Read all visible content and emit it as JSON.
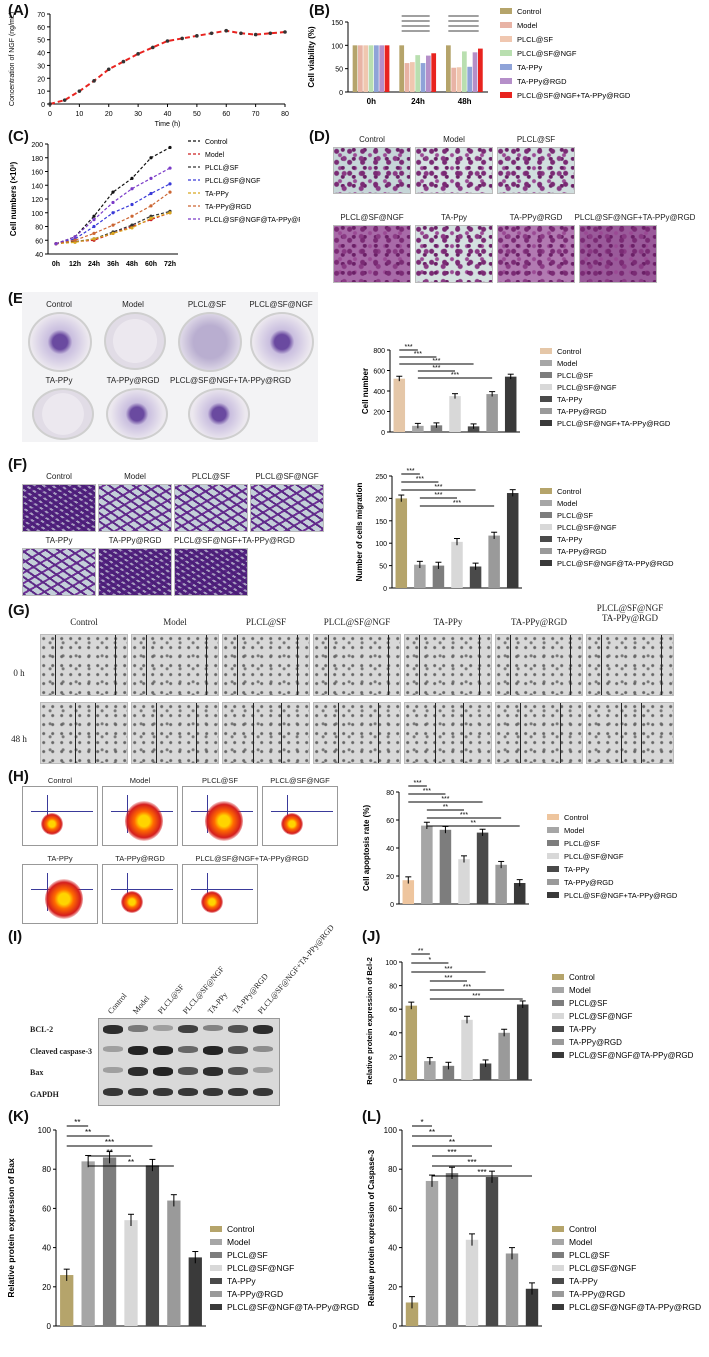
{
  "labels": {
    "A": "(A)",
    "B": "(B)",
    "C": "(C)",
    "D": "(D)",
    "E": "(E)",
    "F": "(F)",
    "G": "(G)",
    "H": "(H)",
    "I": "(I)",
    "J": "(J)",
    "K": "(K)",
    "L": "(L)"
  },
  "groups7_sf": [
    "Control",
    "Model",
    "PLCL@SF",
    "PLCL@SF@NGF",
    "TA-PPy",
    "TA-PPy@RGD",
    "PLCL@SF@NGF+TA-PPy@RGD"
  ],
  "groups7_at": [
    "Control",
    "Model",
    "PLCL@SF",
    "PLCL@SF@NGF",
    "TA-PPy",
    "TA-PPy@RGD",
    "PLCL@SF@NGF@TA-PPy@RGD"
  ],
  "photos": {
    "D": [
      "Control",
      "Model",
      "PLCL@SF",
      "PLCL@SF@NGF",
      "TA-Ppy",
      "TA-PPy@RGD",
      "PLCL@SF@NGF+TA-PPy@RGD"
    ],
    "E": [
      "Control",
      "Model",
      "PLCL@SF",
      "PLCL@SF@NGF",
      "TA-PPy",
      "TA-PPy@RGD",
      "PLCL@SF@NGF+TA-PPy@RGD"
    ],
    "F": [
      "Control",
      "Model",
      "PLCL@SF",
      "PLCL@SF@NGF",
      "TA-PPy",
      "TA-PPy@RGD",
      "PLCL@SF@NGF+TA-PPy@RGD"
    ],
    "G": [
      "Control",
      "Model",
      "PLCL@SF",
      "PLCL@SF@NGF",
      "TA-PPy",
      "TA-PPy@RGD",
      "PLCL@SF@NGF\nTA-PPy@RGD"
    ],
    "G_rows": [
      "0 h",
      "48 h"
    ],
    "H": [
      "Control",
      "Model",
      "PLCL@SF",
      "PLCL@SF@NGF",
      "TA-PPy",
      "TA-PPy@RGD",
      "PLCL@SF@NGF+TA-PPy@RGD"
    ]
  },
  "blot": {
    "lanes": [
      "Control",
      "Model",
      "PLCL@SF",
      "PLCL@SF@NGF",
      "TA-PPy",
      "TA-PPy@RGD",
      "PLCL@SF@NGF+TA-PPy@RGD"
    ],
    "rows": [
      "BCL-2",
      "Cleaved caspase-3",
      "Bax",
      "GAPDH"
    ]
  },
  "colors": {
    "control": "#b5a46b",
    "model": "#a6a6a6",
    "plcl_sf": "#7d7d7d",
    "plcl_sf_ngf": "#d8d8d8",
    "tappy": "#4a4a4a",
    "tappy_rgd": "#9a9a9a",
    "combo": "#3a3a3a",
    "E_control": "#e5c7a8",
    "H_control": "#eec59e",
    "B_colors": [
      "#b5a46b",
      "#e8b3a5",
      "#f0c7b0",
      "#b9dfb0",
      "#8fa3d8",
      "#b58fc9",
      "#e8231f"
    ],
    "C_colors": [
      "#111111",
      "#cc2222",
      "#333333",
      "#3a3ad8",
      "#d8a820",
      "#cc6633",
      "#7a3ac8"
    ]
  },
  "chart_data": [
    {
      "id": "A",
      "type": "line",
      "xlabel": "Time (h)",
      "ylabel": "Concentration of NGF (ng/mL)",
      "x": [
        0,
        5,
        10,
        15,
        20,
        25,
        30,
        35,
        40,
        45,
        50,
        55,
        60,
        65,
        70,
        75,
        80
      ],
      "values": [
        0,
        3,
        10,
        18,
        27,
        33,
        39,
        44,
        49,
        51,
        53,
        55,
        57,
        55,
        54,
        55,
        56
      ],
      "xlim": [
        0,
        80
      ],
      "ylim": [
        0,
        70
      ],
      "xticks": [
        0,
        10,
        20,
        30,
        40,
        50,
        60,
        70,
        80
      ],
      "yticks": [
        0,
        10,
        20,
        30,
        40,
        50,
        60,
        70
      ]
    },
    {
      "id": "B",
      "type": "bar",
      "ylabel": "Cell viability (%)",
      "categories": [
        "0h",
        "24h",
        "48h"
      ],
      "ylim": [
        0,
        150
      ],
      "yticks": [
        0,
        50,
        100,
        150
      ],
      "series": [
        {
          "name": "Control",
          "values": [
            100,
            100,
            100
          ]
        },
        {
          "name": "Model",
          "values": [
            100,
            62,
            52
          ]
        },
        {
          "name": "PLCL@SF",
          "values": [
            100,
            64,
            53
          ]
        },
        {
          "name": "PLCL@SF@NGF",
          "values": [
            100,
            79,
            87
          ]
        },
        {
          "name": "TA-PPy",
          "values": [
            100,
            62,
            54
          ]
        },
        {
          "name": "TA-PPy@RGD",
          "values": [
            100,
            78,
            85
          ]
        },
        {
          "name": "PLCL@SF@NGF+TA-PPy@RGD",
          "values": [
            100,
            83,
            93
          ]
        }
      ]
    },
    {
      "id": "C",
      "type": "line",
      "ylabel": "Cell numbers (×10³)",
      "categories": [
        "0h",
        "12h",
        "24h",
        "36h",
        "48h",
        "60h",
        "72h"
      ],
      "ylim": [
        40,
        200
      ],
      "yticks": [
        40,
        60,
        80,
        100,
        120,
        140,
        160,
        180,
        200
      ],
      "series": [
        {
          "name": "Control",
          "values": [
            55,
            65,
            95,
            130,
            150,
            180,
            195
          ]
        },
        {
          "name": "Model",
          "values": [
            55,
            58,
            60,
            70,
            80,
            90,
            100
          ]
        },
        {
          "name": "PLCL@SF",
          "values": [
            55,
            58,
            62,
            72,
            82,
            95,
            102
          ]
        },
        {
          "name": "PLCL@SF@NGF",
          "values": [
            55,
            62,
            80,
            100,
            112,
            128,
            142
          ]
        },
        {
          "name": "TA-PPy",
          "values": [
            55,
            57,
            62,
            70,
            78,
            92,
            100
          ]
        },
        {
          "name": "TA-PPy@RGD",
          "values": [
            55,
            60,
            70,
            82,
            95,
            110,
            130
          ]
        },
        {
          "name": "PLCL@SF@NGF@TA-PPy@RGD",
          "values": [
            55,
            65,
            90,
            115,
            135,
            150,
            165
          ]
        }
      ]
    },
    {
      "id": "E",
      "type": "bar",
      "ylabel": "Cell number",
      "ylim": [
        0,
        800
      ],
      "yticks": [
        0,
        200,
        400,
        600,
        800
      ],
      "categories": [
        "Control",
        "Model",
        "PLCL@SF",
        "PLCL@SF@NGF",
        "TA-PPy",
        "TA-PPy@RGD",
        "PLCL@SF@NGF+TA-PPy@RGD"
      ],
      "values": [
        520,
        60,
        65,
        350,
        55,
        370,
        540
      ],
      "sig": [
        "***",
        "***",
        "***",
        "***",
        "***"
      ]
    },
    {
      "id": "F",
      "type": "bar",
      "ylabel": "Number of cells migration",
      "ylim": [
        0,
        250
      ],
      "yticks": [
        0,
        50,
        100,
        150,
        200,
        250
      ],
      "categories": [
        "Control",
        "Model",
        "PLCL@SF",
        "PLCL@SF@NGF",
        "TA-PPy",
        "TA-PPy@RGD",
        "PLCL@SF@NGF@TA-PPy@RGD"
      ],
      "values": [
        200,
        52,
        50,
        103,
        48,
        117,
        212
      ],
      "sig": [
        "***",
        "***",
        "***",
        "***",
        "***"
      ]
    },
    {
      "id": "H",
      "type": "bar",
      "ylabel": "Cell apoptosis rate (%)",
      "ylim": [
        0,
        80
      ],
      "yticks": [
        0,
        20,
        40,
        60,
        80
      ],
      "categories": [
        "Control",
        "Model",
        "PLCL@SF",
        "PLCL@SF@NGF",
        "TA-PPy",
        "TA-PPy@RGD",
        "PLCL@SF@NGF+TA-PPy@RGD"
      ],
      "values": [
        17,
        56,
        53,
        32,
        51,
        28,
        15
      ],
      "sig": [
        "***",
        "***",
        "***",
        "**",
        "***",
        "**"
      ]
    },
    {
      "id": "J",
      "type": "bar",
      "ylabel": "Relative protein expression of Bcl-2",
      "ylim": [
        0,
        100
      ],
      "yticks": [
        0,
        20,
        40,
        60,
        80,
        100
      ],
      "categories": [
        "Control",
        "Model",
        "PLCL@SF",
        "PLCL@SF@NGF",
        "TA-PPy",
        "TA-PPy@RGD",
        "PLCL@SF@NGF@TA-PPy@RGD"
      ],
      "values": [
        63,
        16,
        12,
        51,
        14,
        40,
        64
      ],
      "sig": [
        "**",
        "*",
        "***",
        "***",
        "***",
        "***"
      ]
    },
    {
      "id": "K",
      "type": "bar",
      "ylabel": "Relative protein expression of Bax",
      "ylim": [
        0,
        100
      ],
      "yticks": [
        0,
        20,
        40,
        60,
        80,
        100
      ],
      "categories": [
        "Control",
        "Model",
        "PLCL@SF",
        "PLCL@SF@NGF",
        "TA-PPy",
        "TA-PPy@RGD",
        "PLCL@SF@NGF@TA-PPy@RGD"
      ],
      "values": [
        26,
        84,
        86,
        54,
        82,
        64,
        35
      ],
      "sig": [
        "**",
        "**",
        "***",
        "**",
        "**"
      ]
    },
    {
      "id": "L",
      "type": "bar",
      "ylabel": "Relative protein expression of Caspase-3",
      "ylim": [
        0,
        100
      ],
      "yticks": [
        0,
        20,
        40,
        60,
        80,
        100
      ],
      "categories": [
        "Control",
        "Model",
        "PLCL@SF",
        "PLCL@SF@NGF",
        "TA-PPy",
        "TA-PPy@RGD",
        "PLCL@SF@NGF@TA-PPy@RGD"
      ],
      "values": [
        12,
        74,
        78,
        44,
        76,
        37,
        19
      ],
      "sig": [
        "*",
        "**",
        "**",
        "***",
        "***",
        "***"
      ]
    }
  ]
}
